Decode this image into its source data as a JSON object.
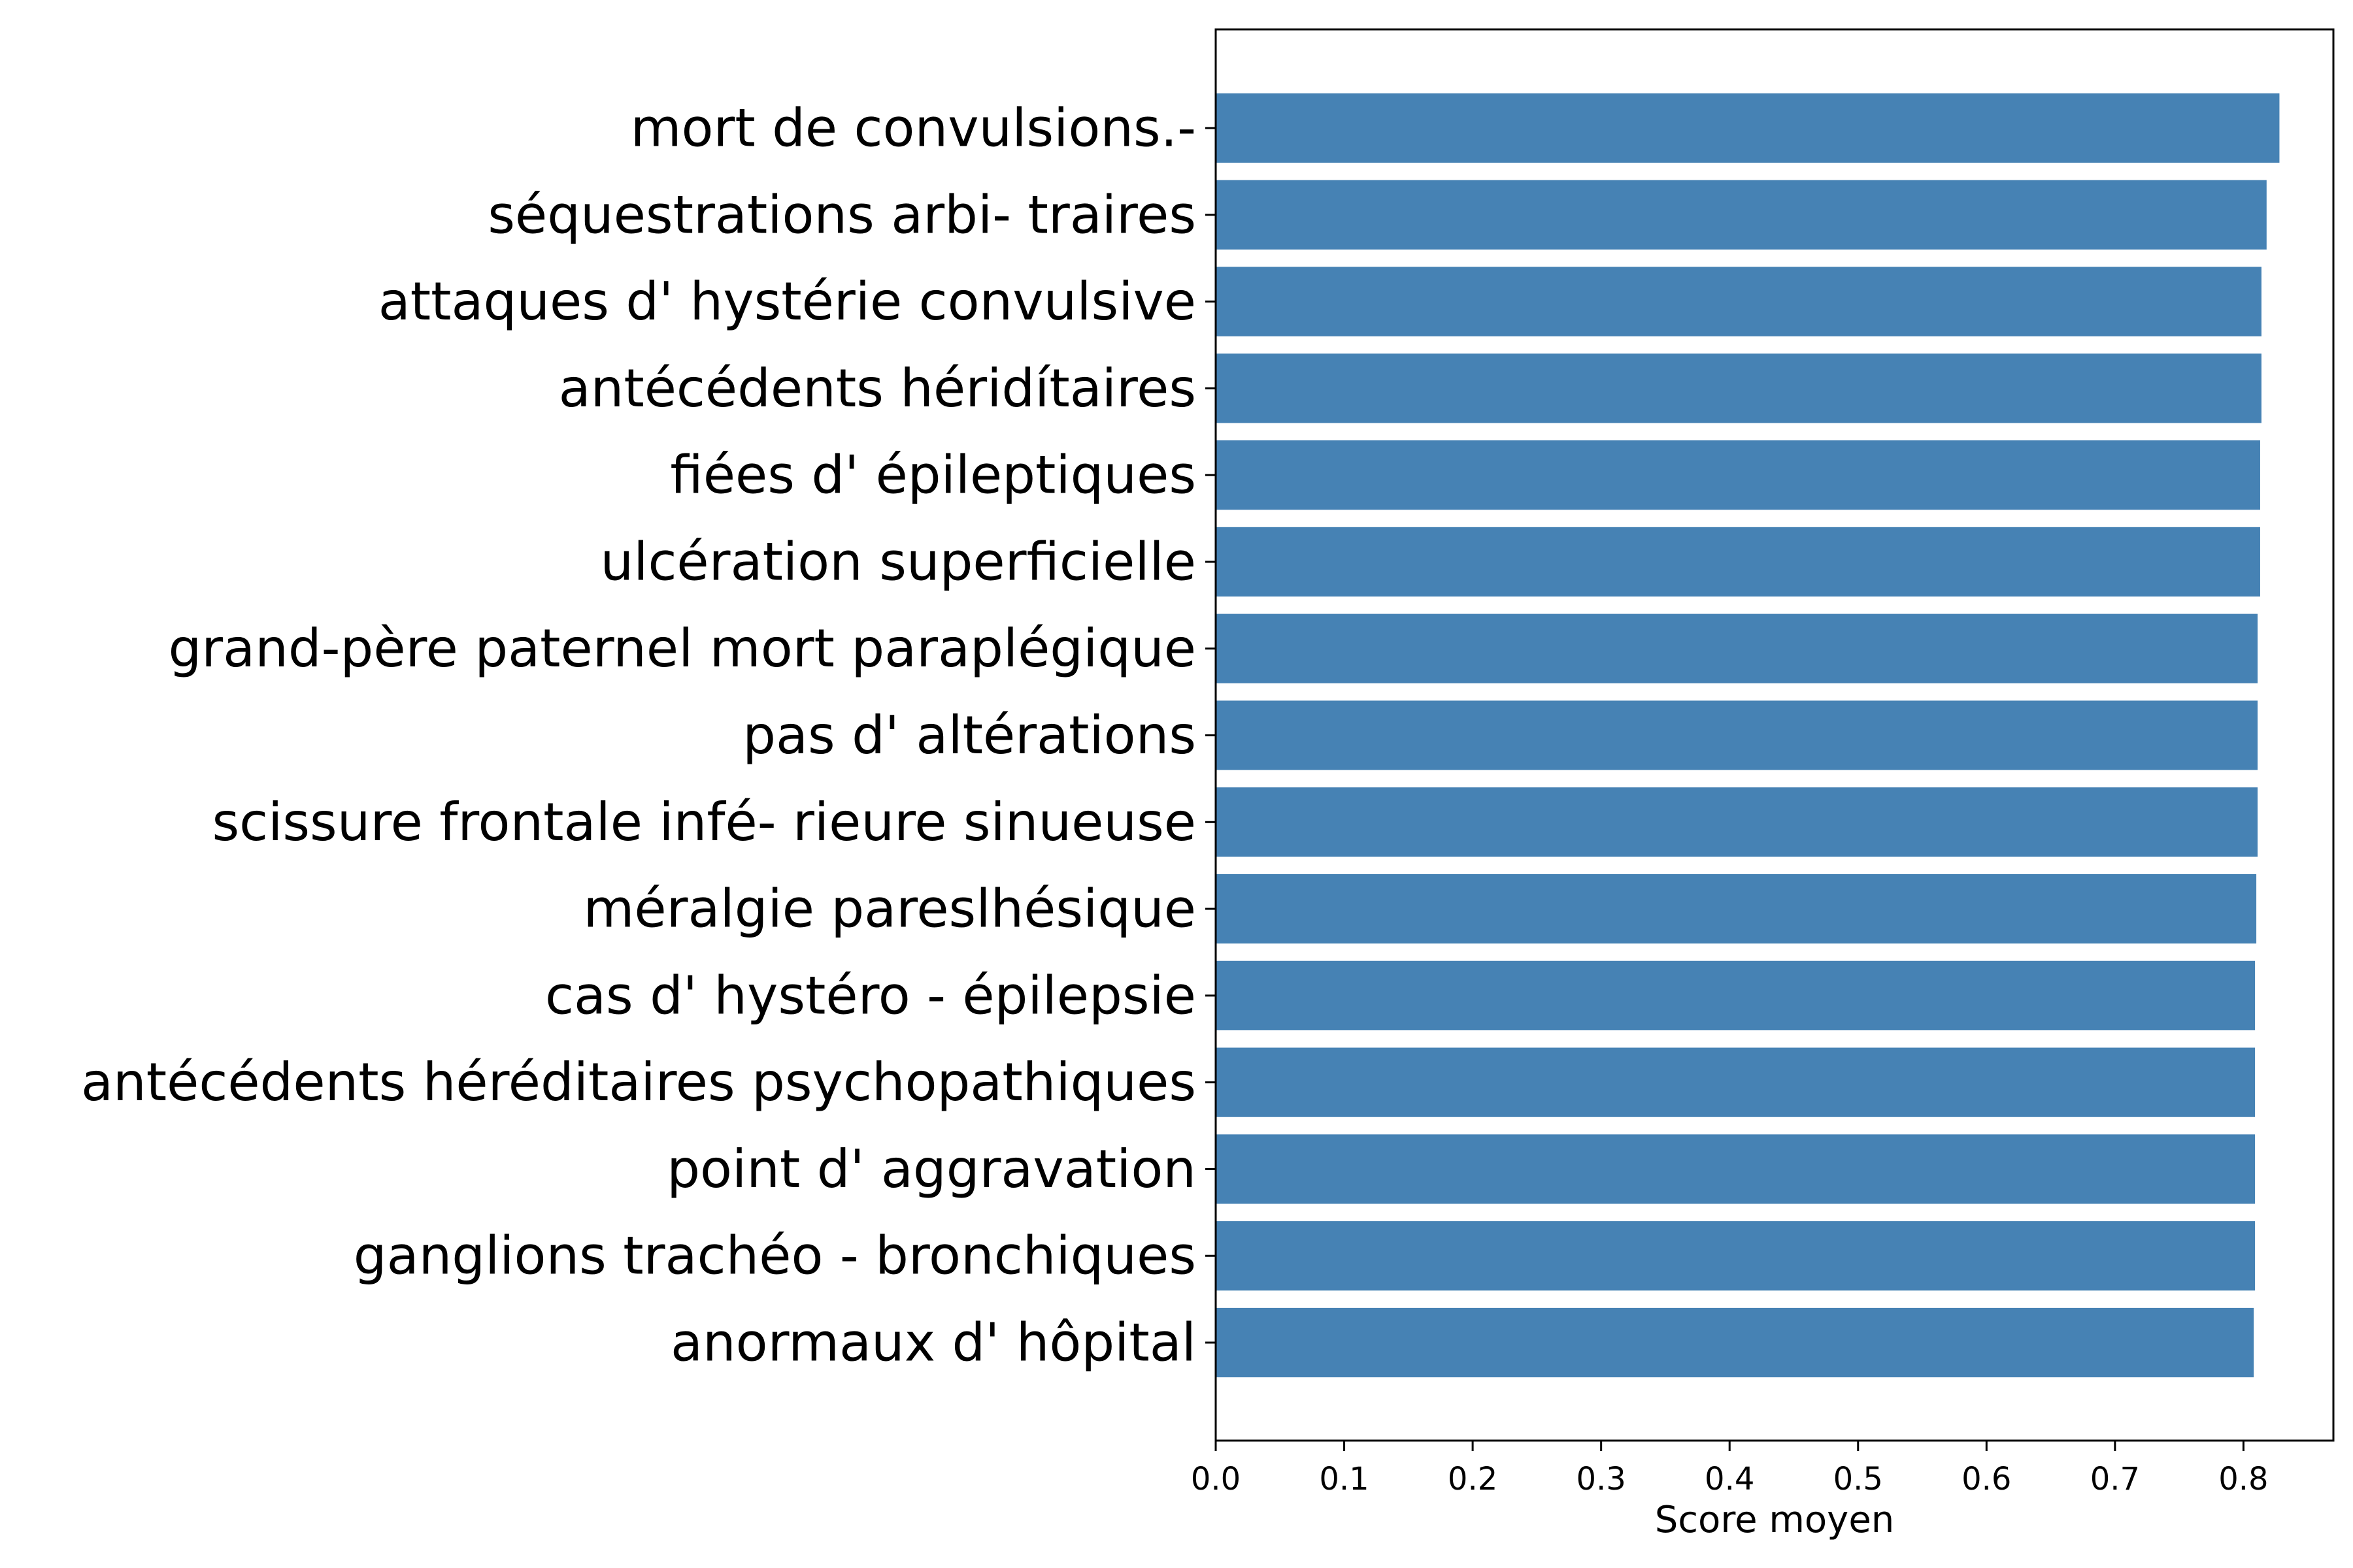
{
  "chart_data": {
    "type": "bar",
    "orientation": "horizontal",
    "categories": [
      "mort de convulsions.-",
      "séquestrations arbi- traires",
      "attaques d' hystérie convulsive",
      "antécédents héridítaires",
      "fiées d' épileptiques",
      "ulcération superficielle",
      "grand-père paternel mort paraplégique",
      "pas d' altérations",
      "scissure frontale infé- rieure sinueuse",
      "méralgie pareslhésique",
      "cas d' hystéro - épilepsie",
      "antécédents héréditaires psychopathiques",
      "point d' aggravation",
      "ganglions trachéo - bronchiques",
      "anormaux d' hôpital"
    ],
    "values": [
      0.828,
      0.818,
      0.814,
      0.814,
      0.813,
      0.813,
      0.811,
      0.811,
      0.811,
      0.81,
      0.809,
      0.809,
      0.809,
      0.809,
      0.808
    ],
    "xlabel": "Score moyen",
    "ylabel": "",
    "title": "",
    "xlim": [
      0,
      0.87
    ],
    "xticks": [
      "0.0",
      "0.1",
      "0.2",
      "0.3",
      "0.4",
      "0.5",
      "0.6",
      "0.7",
      "0.8"
    ],
    "grid": false,
    "bar_color": "#4682b4"
  }
}
